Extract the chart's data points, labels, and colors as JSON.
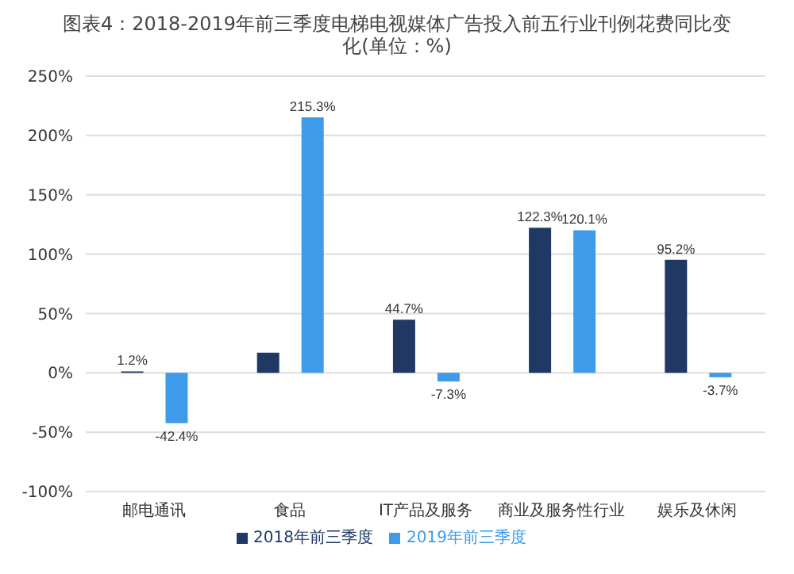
{
  "chart_data": {
    "type": "bar",
    "title": "图表4：2018-2019年前三季度电梯电视媒体广告投入前五行业刊例花费同比变化(单位：%)",
    "categories": [
      "邮电通讯",
      "食品",
      "IT产品及服务",
      "商业及服务性行业",
      "娱乐及休闲"
    ],
    "series": [
      {
        "name": "2018年前三季度",
        "color": "#1f3864",
        "values": [
          1.2,
          17,
          44.7,
          122.3,
          95.2
        ],
        "value_labels": [
          "1.2%",
          null,
          "44.7%",
          "122.3%",
          "95.2%"
        ]
      },
      {
        "name": "2019年前三季度",
        "color": "#3d9be9",
        "values": [
          -42.4,
          215.3,
          -7.3,
          120.1,
          -3.7
        ],
        "value_labels": [
          "-42.4%",
          "215.3%",
          "-7.3%",
          "120.1%",
          "-3.7%"
        ]
      }
    ],
    "ylim": [
      -100,
      250
    ],
    "yticks": [
      {
        "value": -100,
        "label": "-100%"
      },
      {
        "value": -50,
        "label": "-50%"
      },
      {
        "value": 0,
        "label": "0%"
      },
      {
        "value": 50,
        "label": "50%"
      },
      {
        "value": 100,
        "label": "100%"
      },
      {
        "value": 150,
        "label": "150%"
      },
      {
        "value": 200,
        "label": "200%"
      },
      {
        "value": 250,
        "label": "250%"
      }
    ],
    "grid": "y",
    "legend": "bottom"
  }
}
